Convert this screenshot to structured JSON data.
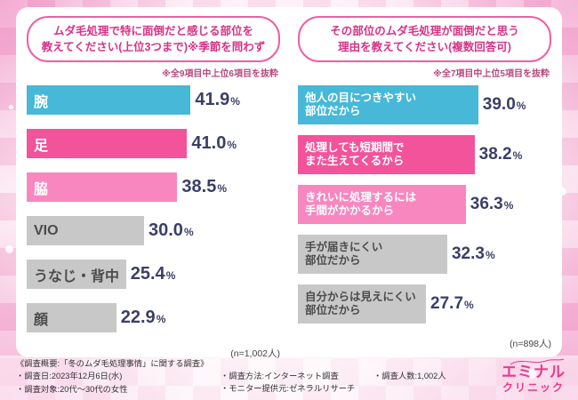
{
  "colors": {
    "bar_cyan": "#47b8d8",
    "bar_pink": "#f2539b",
    "bar_light_pink": "#f887c0",
    "bar_gray": "#c8c8c9",
    "bubble_border": "#ee5fa5",
    "title_text": "#d93287",
    "note_text": "#b5497f",
    "value_text": "#3b3f66",
    "logo_pink": "#e73a8e"
  },
  "chart_data": [
    {
      "type": "bar",
      "orientation": "horizontal",
      "title_lines": [
        "ムダ毛処理で特に面倒だと感じる部位を",
        "教えてください(上位3つまで)※季節を問わず"
      ],
      "note": "※全9項目中上位6項目を抜粋",
      "sample": "(n=1,002人)",
      "unit": "%",
      "xlim": [
        0,
        45
      ],
      "categories": [
        "腕",
        "足",
        "脇",
        "VIO",
        "うなじ・背中",
        "顔"
      ],
      "values": [
        41.9,
        41.0,
        38.5,
        30.0,
        25.4,
        22.9
      ],
      "bars": [
        {
          "label_lines": [
            "腕"
          ],
          "value": 41.9,
          "display": "41.9",
          "color_key": "bar_cyan",
          "text": "light"
        },
        {
          "label_lines": [
            "足"
          ],
          "value": 41.0,
          "display": "41.0",
          "color_key": "bar_pink",
          "text": "light"
        },
        {
          "label_lines": [
            "脇"
          ],
          "value": 38.5,
          "display": "38.5",
          "color_key": "bar_light_pink",
          "text": "light"
        },
        {
          "label_lines": [
            "VIO"
          ],
          "value": 30.0,
          "display": "30.0",
          "color_key": "bar_gray",
          "text": "dark"
        },
        {
          "label_lines": [
            "うなじ・背中"
          ],
          "value": 25.4,
          "display": "25.4",
          "color_key": "bar_gray",
          "text": "dark"
        },
        {
          "label_lines": [
            "顔"
          ],
          "value": 22.9,
          "display": "22.9",
          "color_key": "bar_gray",
          "text": "dark"
        }
      ]
    },
    {
      "type": "bar",
      "orientation": "horizontal",
      "title_lines": [
        "その部位のムダ毛処理が面倒だと思う",
        "理由を教えてください(複数回答可)"
      ],
      "note": "※全7項目中上位5項目を抜粋",
      "sample": "(n=898人)",
      "unit": "%",
      "xlim": [
        0,
        45
      ],
      "categories": [
        "他人の目につきやすい部位だから",
        "処理しても短期間でまた生えてくるから",
        "きれいに処理するには手間がかかるから",
        "手が届きにくい部位だから",
        "自分からは見えにくい部位だから"
      ],
      "values": [
        39.0,
        38.2,
        36.3,
        32.3,
        27.7
      ],
      "bars": [
        {
          "label_lines": [
            "他人の目につきやすい",
            "部位だから"
          ],
          "value": 39.0,
          "display": "39.0",
          "color_key": "bar_cyan",
          "text": "light"
        },
        {
          "label_lines": [
            "処理しても短期間で",
            "また生えてくるから"
          ],
          "value": 38.2,
          "display": "38.2",
          "color_key": "bar_pink",
          "text": "light"
        },
        {
          "label_lines": [
            "きれいに処理するには",
            "手間がかかるから"
          ],
          "value": 36.3,
          "display": "36.3",
          "color_key": "bar_light_pink",
          "text": "light"
        },
        {
          "label_lines": [
            "手が届きにくい",
            "部位だから"
          ],
          "value": 32.3,
          "display": "32.3",
          "color_key": "bar_gray",
          "text": "dark"
        },
        {
          "label_lines": [
            "自分からは見えにくい",
            "部位だから"
          ],
          "value": 27.7,
          "display": "27.7",
          "color_key": "bar_gray",
          "text": "dark"
        }
      ]
    }
  ],
  "footer": {
    "col1": [
      "《調査概要:「冬のムダ毛処理事情」に関する調査》",
      "・調査日:2023年12月6日(水)",
      "・調査対象:20代〜30代の女性"
    ],
    "col2": [
      "・調査方法:インターネット調査",
      "・モニター提供元:ゼネラルリサーチ"
    ],
    "col3": [
      "・調査人数:1,002人"
    ],
    "logo": {
      "line1": "エミナル",
      "line2": "クリニック"
    }
  }
}
